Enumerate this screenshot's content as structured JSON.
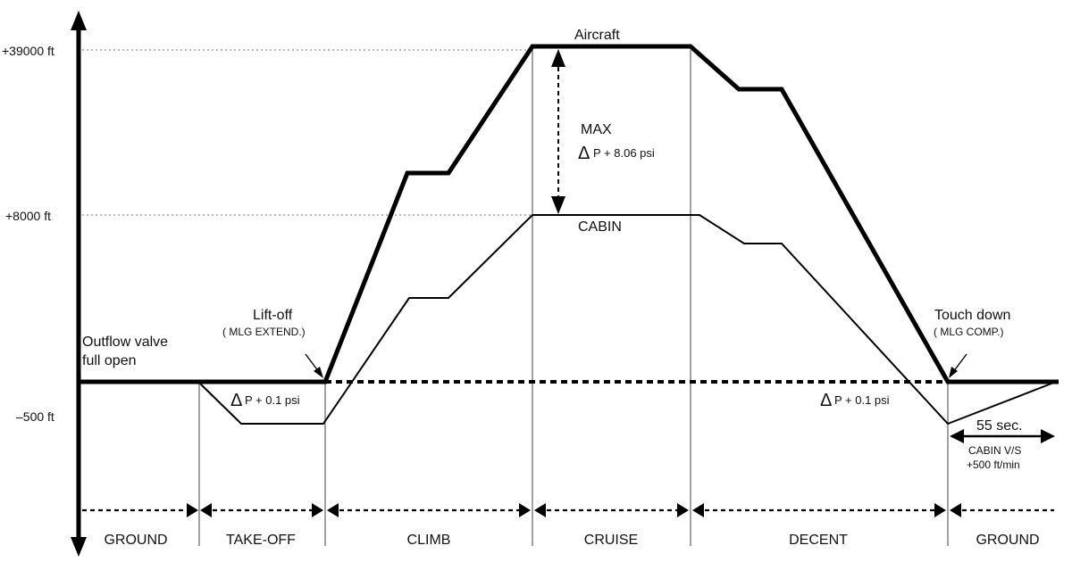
{
  "axis": {
    "y_labels": [
      "+39000 ft",
      "+8000 ft",
      "–500 ft"
    ]
  },
  "curves": {
    "aircraft_label": "Aircraft",
    "cabin_label": "CABIN"
  },
  "annotations": {
    "max_line1": "MAX",
    "max_delta": "Δ",
    "max_line2": "P + 8.06 psi",
    "outflow_line1": "Outflow valve",
    "outflow_line2": "full open",
    "liftoff_line1": "Lift-off",
    "liftoff_line2": "( MLG EXTEND.)",
    "dp_takeoff_delta": "Δ",
    "dp_takeoff_text": "P + 0.1 psi",
    "dp_landing_delta": "Δ",
    "dp_landing_text": "P + 0.1 psi",
    "touchdown_line1": "Touch down",
    "touchdown_line2": "( MLG COMP.)",
    "time_label": "55 sec.",
    "vs_line1": "CABIN V/S",
    "vs_line2": "+500 ft/min"
  },
  "phases": [
    "GROUND",
    "TAKE-OFF",
    "CLIMB",
    "CRUISE",
    "DECENT",
    "GROUND"
  ]
}
